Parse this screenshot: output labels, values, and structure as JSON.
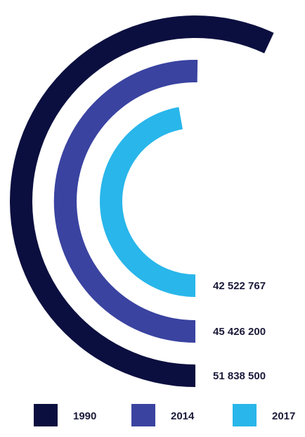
{
  "chart_data": {
    "type": "radial-bar",
    "series": [
      {
        "name": "1990",
        "value": 51838500,
        "value_label": "51 838 500",
        "color": "#0b0f3f"
      },
      {
        "name": "2014",
        "value": 45426200,
        "value_label": "45 426 200",
        "color": "#3a43a0"
      },
      {
        "name": "2017",
        "value": 42522767,
        "value_label": "42 522 767",
        "color": "#29b6ea"
      }
    ],
    "legend": {
      "placement": "bottom",
      "entries": [
        "1990",
        "2014",
        "2017"
      ]
    }
  }
}
